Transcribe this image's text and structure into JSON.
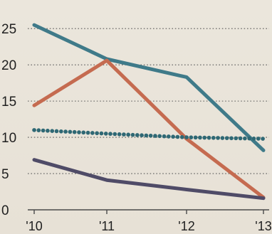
{
  "chart_data": {
    "type": "line",
    "title": "",
    "xlabel": "",
    "ylabel": "",
    "categories": [
      "'10",
      "'11",
      "'12",
      "'13"
    ],
    "y_ticks": [
      "0",
      "5",
      "10",
      "15",
      "20",
      "25"
    ],
    "ylim": [
      0,
      26
    ],
    "grid": true,
    "series": [
      {
        "values": [
          25.5,
          20.8,
          18.3,
          8.2
        ],
        "color": "#3f7a89",
        "style": "solid"
      },
      {
        "values": [
          14.4,
          20.6,
          9.8,
          1.7
        ],
        "color": "#c56b50",
        "style": "solid"
      },
      {
        "values": [
          11.0,
          10.5,
          10.0,
          9.8
        ],
        "color": "#2f6874",
        "style": "dotted"
      },
      {
        "values": [
          6.9,
          4.1,
          2.8,
          1.6
        ],
        "color": "#4f4b67",
        "style": "solid"
      }
    ]
  }
}
